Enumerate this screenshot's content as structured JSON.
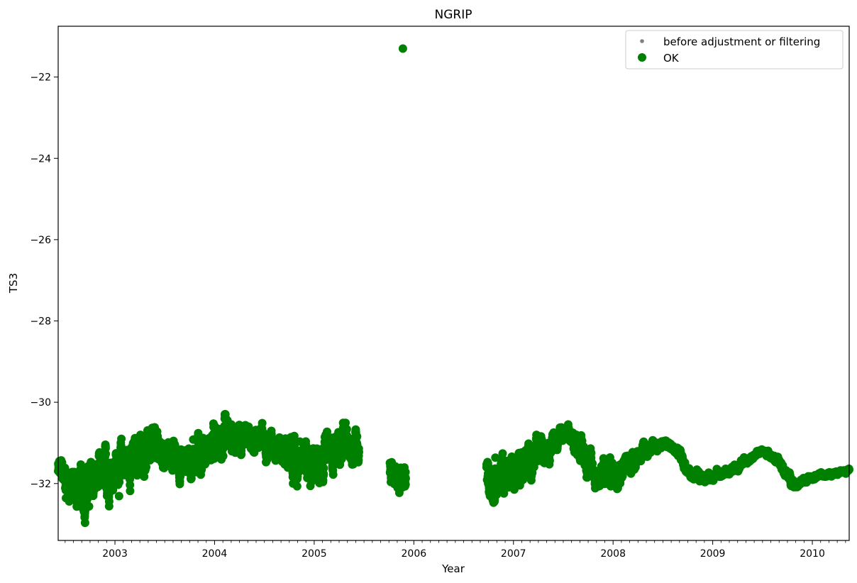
{
  "chart_data": {
    "type": "scatter",
    "title": "NGRIP",
    "xlabel": "Year",
    "ylabel": "TS3",
    "xlim": [
      2002.43,
      2010.37
    ],
    "ylim": [
      -33.4,
      -20.75
    ],
    "x_ticks": [
      2003,
      2004,
      2005,
      2006,
      2007,
      2008,
      2009,
      2010
    ],
    "y_ticks": [
      -32,
      -30,
      -28,
      -26,
      -24,
      -22
    ],
    "y_tick_labels": [
      "−32",
      "−30",
      "−28",
      "−26",
      "−24",
      "−22"
    ],
    "grid": false,
    "legend_position": "top-right",
    "legend": [
      {
        "label": "before adjustment or filtering",
        "color": "#808080",
        "marker": "small-dot"
      },
      {
        "label": "OK",
        "color": "#008000",
        "marker": "large-dot"
      }
    ],
    "series": [
      {
        "name": "OK",
        "color": "#008000",
        "segments": [
          {
            "x": [
              2002.43,
              2002.5,
              2002.58,
              2002.66,
              2002.75,
              2002.83,
              2002.92,
              2003.0,
              2003.08,
              2003.17,
              2003.25,
              2003.33,
              2003.42,
              2003.5,
              2003.58,
              2003.67,
              2003.75,
              2003.83,
              2003.92,
              2004.0,
              2004.08,
              2004.17,
              2004.25,
              2004.33,
              2004.42,
              2004.5,
              2004.58,
              2004.67,
              2004.75,
              2004.83,
              2004.92,
              2005.0,
              2005.08,
              2005.17,
              2005.25,
              2005.33,
              2005.4,
              2005.45
            ],
            "y": [
              -31.7,
              -31.8,
              -32.1,
              -32.2,
              -32.1,
              -31.9,
              -31.8,
              -31.6,
              -31.5,
              -31.4,
              -31.3,
              -31.2,
              -31.1,
              -31.3,
              -31.3,
              -31.5,
              -31.4,
              -31.3,
              -31.2,
              -31.1,
              -31.0,
              -31.0,
              -31.0,
              -30.9,
              -30.9,
              -30.9,
              -31.0,
              -31.1,
              -31.3,
              -31.5,
              -31.5,
              -31.4,
              -31.3,
              -31.2,
              -31.1,
              -31.1,
              -31.1,
              -31.0
            ],
            "spread": [
              0.35,
              0.45,
              0.55,
              0.55,
              0.5,
              0.5,
              0.5,
              0.5,
              0.45,
              0.45,
              0.45,
              0.4,
              0.35,
              0.35,
              0.35,
              0.4,
              0.45,
              0.45,
              0.45,
              0.45,
              0.45,
              0.4,
              0.35,
              0.3,
              0.3,
              0.3,
              0.3,
              0.35,
              0.4,
              0.45,
              0.45,
              0.45,
              0.45,
              0.45,
              0.45,
              0.45,
              0.45,
              0.4
            ]
          },
          {
            "x": [
              2005.76,
              2005.8,
              2005.84,
              2005.88,
              2005.92
            ],
            "y": [
              -31.6,
              -31.7,
              -31.9,
              -32.0,
              -31.9
            ],
            "spread": [
              0.35,
              0.35,
              0.35,
              0.4,
              0.35
            ]
          },
          {
            "x": [
              2006.73,
              2006.8,
              2006.88,
              2006.95,
              2007.03,
              2007.1,
              2007.18,
              2007.25,
              2007.33,
              2007.42,
              2007.5,
              2007.58,
              2007.67,
              2007.75,
              2007.83,
              2007.92,
              2008.0,
              2008.08,
              2008.17,
              2008.25,
              2008.33,
              2008.42,
              2008.5,
              2008.58,
              2008.67,
              2008.75,
              2008.83,
              2008.92,
              2009.0,
              2009.08,
              2009.17,
              2009.25,
              2009.33,
              2009.42,
              2009.5,
              2009.58,
              2009.67,
              2009.75,
              2009.83,
              2009.92,
              2010.0,
              2010.08,
              2010.17,
              2010.25,
              2010.37
            ],
            "y": [
              -31.8,
              -31.9,
              -31.9,
              -31.8,
              -31.6,
              -31.5,
              -31.4,
              -31.3,
              -31.1,
              -30.9,
              -30.8,
              -30.9,
              -31.1,
              -31.5,
              -31.8,
              -31.8,
              -31.7,
              -31.6,
              -31.5,
              -31.3,
              -31.2,
              -31.1,
              -31.0,
              -31.1,
              -31.3,
              -31.7,
              -31.85,
              -31.85,
              -31.8,
              -31.75,
              -31.7,
              -31.6,
              -31.4,
              -31.3,
              -31.2,
              -31.3,
              -31.5,
              -31.8,
              -32.0,
              -31.95,
              -31.85,
              -31.8,
              -31.75,
              -31.75,
              -31.65
            ],
            "spread": [
              0.45,
              0.5,
              0.5,
              0.45,
              0.45,
              0.45,
              0.4,
              0.35,
              0.3,
              0.25,
              0.2,
              0.2,
              0.3,
              0.3,
              0.35,
              0.4,
              0.35,
              0.3,
              0.25,
              0.2,
              0.15,
              0.12,
              0.1,
              0.1,
              0.15,
              0.15,
              0.12,
              0.1,
              0.1,
              0.1,
              0.1,
              0.1,
              0.08,
              0.06,
              0.05,
              0.06,
              0.1,
              0.12,
              0.1,
              0.08,
              0.07,
              0.05,
              0.05,
              0.05,
              0.05
            ]
          }
        ],
        "outliers": [
          {
            "x": 2005.89,
            "y": -21.3
          }
        ]
      }
    ]
  }
}
